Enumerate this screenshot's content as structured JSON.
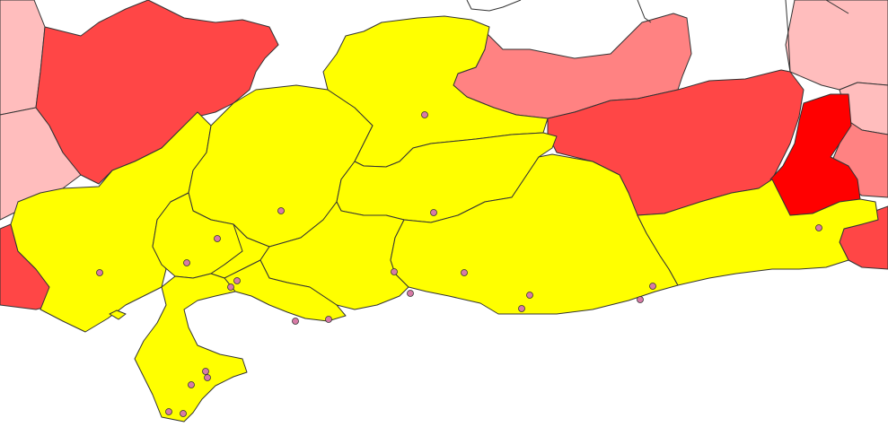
{
  "map": {
    "colors": {
      "background": "#ffffff",
      "border": "#333333",
      "yellow": "#ffff00",
      "red_dark": "#ff0000",
      "red_medium": "#ff4646",
      "red_light": "#ff8282",
      "red_pale": "#ffbdbd",
      "point": "#d77aa6"
    },
    "legend": null
  }
}
